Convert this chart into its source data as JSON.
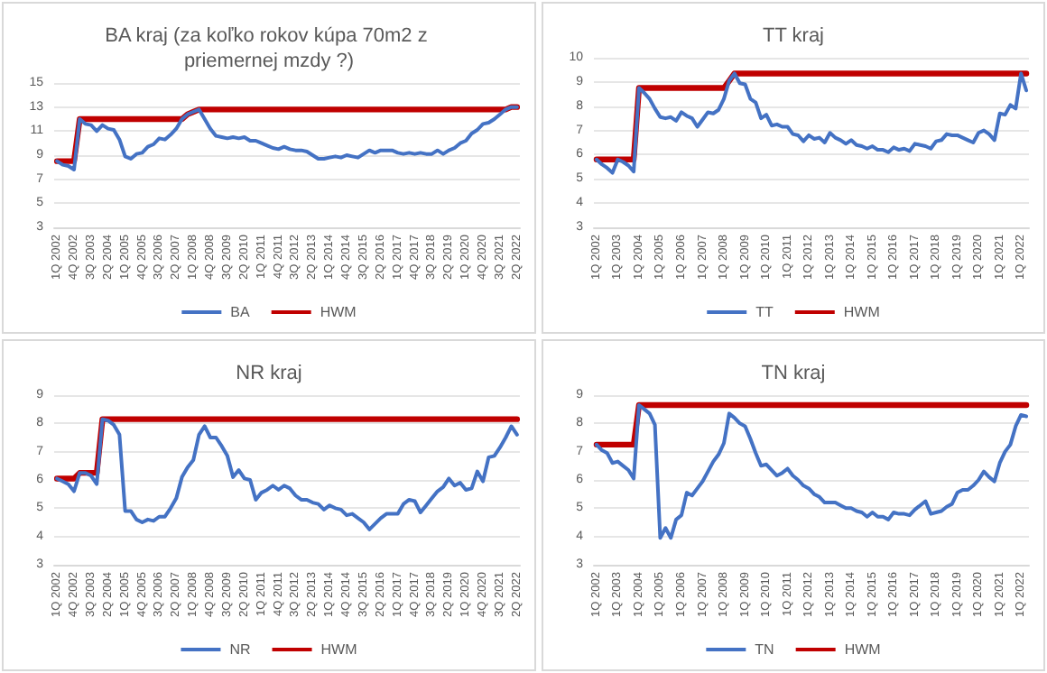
{
  "chart_data": [
    {
      "type": "line",
      "title": "BA kraj (za koľko rokov kúpa 70m2 z priemernej mzdy ?)",
      "categories": [
        "1Q 2002",
        null,
        null,
        "4Q 2002",
        null,
        null,
        "3Q 2003",
        null,
        null,
        "2Q 2004",
        null,
        null,
        "1Q 2005",
        null,
        null,
        "4Q 2005",
        null,
        null,
        "3Q 2006",
        null,
        null,
        "2Q 2007",
        null,
        null,
        "1Q 2008",
        null,
        null,
        "4Q 2008",
        null,
        null,
        "3Q 2009",
        null,
        null,
        "2Q 2010",
        null,
        null,
        "1Q 2011",
        null,
        null,
        "4Q 2011",
        null,
        null,
        "3Q 2012",
        null,
        null,
        "2Q 2013",
        null,
        null,
        "1Q 2014",
        null,
        null,
        "4Q 2014",
        null,
        null,
        "3Q 2015",
        null,
        null,
        "2Q 2016",
        null,
        null,
        "1Q 2017",
        null,
        null,
        "4Q 2017",
        null,
        null,
        "3Q 2018",
        null,
        null,
        "2Q 2019",
        null,
        null,
        "1Q 2020",
        null,
        null,
        "4Q 2020",
        null,
        null,
        "3Q 2021",
        null,
        null,
        "2Q 2022"
      ],
      "series": [
        {
          "name": "BA",
          "color": "#4472c4",
          "values": [
            8.5,
            8.2,
            8.1,
            7.8,
            12.0,
            11.6,
            11.5,
            11.0,
            11.5,
            11.2,
            11.1,
            10.3,
            8.9,
            8.7,
            9.1,
            9.2,
            9.7,
            9.9,
            10.4,
            10.3,
            10.7,
            11.2,
            12.0,
            12.4,
            12.6,
            12.8,
            12.0,
            11.2,
            10.6,
            10.5,
            10.4,
            10.5,
            10.4,
            10.5,
            10.2,
            10.2,
            10.0,
            9.8,
            9.6,
            9.5,
            9.7,
            9.5,
            9.4,
            9.4,
            9.3,
            9.0,
            8.7,
            8.7,
            8.8,
            8.9,
            8.8,
            9.0,
            8.9,
            8.8,
            9.1,
            9.4,
            9.2,
            9.4,
            9.4,
            9.4,
            9.2,
            9.1,
            9.2,
            9.1,
            9.2,
            9.1,
            9.1,
            9.4,
            9.1,
            9.4,
            9.6,
            10.0,
            10.2,
            10.8,
            11.1,
            11.6,
            11.7,
            12.0,
            12.4,
            12.8,
            13.0,
            13.0
          ]
        },
        {
          "name": "HWM",
          "color": "#c00000",
          "values": [
            8.5,
            8.5,
            8.5,
            8.5,
            12.0,
            12.0,
            12.0,
            12.0,
            12.0,
            12.0,
            12.0,
            12.0,
            12.0,
            12.0,
            12.0,
            12.0,
            12.0,
            12.0,
            12.0,
            12.0,
            12.0,
            12.0,
            12.0,
            12.4,
            12.6,
            12.8,
            12.8,
            12.8,
            12.8,
            12.8,
            12.8,
            12.8,
            12.8,
            12.8,
            12.8,
            12.8,
            12.8,
            12.8,
            12.8,
            12.8,
            12.8,
            12.8,
            12.8,
            12.8,
            12.8,
            12.8,
            12.8,
            12.8,
            12.8,
            12.8,
            12.8,
            12.8,
            12.8,
            12.8,
            12.8,
            12.8,
            12.8,
            12.8,
            12.8,
            12.8,
            12.8,
            12.8,
            12.8,
            12.8,
            12.8,
            12.8,
            12.8,
            12.8,
            12.8,
            12.8,
            12.8,
            12.8,
            12.8,
            12.8,
            12.8,
            12.8,
            12.8,
            12.8,
            12.8,
            12.8,
            13.0,
            13.0
          ]
        }
      ],
      "ylim": [
        3,
        15
      ],
      "yticks": [
        3,
        5,
        7,
        9,
        11,
        13,
        15
      ],
      "grid": "y",
      "legend": "bottom",
      "marker": "none"
    },
    {
      "type": "line",
      "title": "TT kraj",
      "categories": [
        "1Q 2002",
        null,
        null,
        null,
        "1Q 2003",
        null,
        null,
        null,
        "1Q 2004",
        null,
        null,
        null,
        "1Q 2005",
        null,
        null,
        null,
        "1Q 2006",
        null,
        null,
        null,
        "1Q 2007",
        null,
        null,
        null,
        "1Q 2008",
        null,
        null,
        null,
        "1Q 2009",
        null,
        null,
        null,
        "1Q 2010",
        null,
        null,
        null,
        "1Q 2011",
        null,
        null,
        null,
        "1Q 2012",
        null,
        null,
        null,
        "1Q 2013",
        null,
        null,
        null,
        "1Q 2014",
        null,
        null,
        null,
        "1Q 2015",
        null,
        null,
        null,
        "1Q 2016",
        null,
        null,
        null,
        "1Q 2017",
        null,
        null,
        null,
        "1Q 2018",
        null,
        null,
        null,
        "1Q 2019",
        null,
        null,
        null,
        "1Q 2020",
        null,
        null,
        null,
        "1Q 2021",
        null,
        null,
        null,
        "1Q 2022",
        null
      ],
      "series": [
        {
          "name": "TT",
          "color": "#4472c4",
          "values": [
            5.8,
            5.6,
            5.45,
            5.25,
            5.8,
            5.7,
            5.55,
            5.3,
            8.75,
            8.55,
            8.3,
            7.9,
            7.55,
            7.5,
            7.55,
            7.4,
            7.75,
            7.6,
            7.5,
            7.15,
            7.45,
            7.75,
            7.7,
            7.85,
            8.3,
            9.05,
            9.35,
            8.95,
            8.9,
            8.3,
            8.15,
            7.5,
            7.65,
            7.2,
            7.25,
            7.15,
            7.15,
            6.85,
            6.8,
            6.55,
            6.8,
            6.65,
            6.7,
            6.5,
            6.9,
            6.7,
            6.6,
            6.45,
            6.6,
            6.4,
            6.35,
            6.25,
            6.35,
            6.2,
            6.2,
            6.1,
            6.3,
            6.2,
            6.25,
            6.15,
            6.45,
            6.4,
            6.35,
            6.25,
            6.55,
            6.6,
            6.85,
            6.8,
            6.8,
            6.7,
            6.6,
            6.5,
            6.9,
            7.0,
            6.85,
            6.6,
            7.7,
            7.65,
            8.05,
            7.9,
            9.35,
            8.65
          ]
        },
        {
          "name": "HWM",
          "color": "#c00000",
          "values": [
            5.8,
            5.8,
            5.8,
            5.8,
            5.8,
            5.8,
            5.8,
            5.8,
            8.75,
            8.75,
            8.75,
            8.75,
            8.75,
            8.75,
            8.75,
            8.75,
            8.75,
            8.75,
            8.75,
            8.75,
            8.75,
            8.75,
            8.75,
            8.75,
            8.75,
            9.05,
            9.35,
            9.35,
            9.35,
            9.35,
            9.35,
            9.35,
            9.35,
            9.35,
            9.35,
            9.35,
            9.35,
            9.35,
            9.35,
            9.35,
            9.35,
            9.35,
            9.35,
            9.35,
            9.35,
            9.35,
            9.35,
            9.35,
            9.35,
            9.35,
            9.35,
            9.35,
            9.35,
            9.35,
            9.35,
            9.35,
            9.35,
            9.35,
            9.35,
            9.35,
            9.35,
            9.35,
            9.35,
            9.35,
            9.35,
            9.35,
            9.35,
            9.35,
            9.35,
            9.35,
            9.35,
            9.35,
            9.35,
            9.35,
            9.35,
            9.35,
            9.35,
            9.35,
            9.35,
            9.35,
            9.35,
            9.35
          ]
        }
      ],
      "ylim": [
        3,
        10
      ],
      "yticks": [
        3,
        4,
        5,
        6,
        7,
        8,
        9,
        10
      ],
      "grid": "y",
      "legend": "bottom",
      "marker": "none"
    },
    {
      "type": "line",
      "title": "NR kraj",
      "categories": [
        "1Q 2002",
        null,
        null,
        "4Q 2002",
        null,
        null,
        "3Q 2003",
        null,
        null,
        "2Q 2004",
        null,
        null,
        "1Q 2005",
        null,
        null,
        "4Q 2005",
        null,
        null,
        "3Q 2006",
        null,
        null,
        "2Q 2007",
        null,
        null,
        "1Q 2008",
        null,
        null,
        "4Q 2008",
        null,
        null,
        "3Q 2009",
        null,
        null,
        "2Q 2010",
        null,
        null,
        "1Q 2011",
        null,
        null,
        "4Q 2011",
        null,
        null,
        "3Q 2012",
        null,
        null,
        "2Q 2013",
        null,
        null,
        "1Q 2014",
        null,
        null,
        "4Q 2014",
        null,
        null,
        "3Q 2015",
        null,
        null,
        "2Q 2016",
        null,
        null,
        "1Q 2017",
        null,
        null,
        "4Q 2017",
        null,
        null,
        "3Q 2018",
        null,
        null,
        "2Q 2019",
        null,
        null,
        "1Q 2020",
        null,
        null,
        "4Q 2020",
        null,
        null,
        "3Q 2021",
        null,
        null,
        "2Q 2022"
      ],
      "series": [
        {
          "name": "NR",
          "color": "#4472c4",
          "values": [
            6.05,
            5.95,
            5.85,
            5.6,
            6.25,
            6.25,
            6.15,
            5.85,
            8.15,
            8.1,
            7.95,
            7.6,
            4.9,
            4.9,
            4.6,
            4.5,
            4.6,
            4.55,
            4.7,
            4.7,
            5.0,
            5.35,
            6.1,
            6.45,
            6.7,
            7.6,
            7.9,
            7.5,
            7.5,
            7.2,
            6.85,
            6.1,
            6.35,
            6.05,
            6.0,
            5.3,
            5.55,
            5.65,
            5.8,
            5.65,
            5.8,
            5.7,
            5.45,
            5.3,
            5.3,
            5.2,
            5.15,
            4.95,
            5.1,
            5.0,
            4.95,
            4.75,
            4.8,
            4.65,
            4.5,
            4.25,
            4.45,
            4.65,
            4.8,
            4.8,
            4.8,
            5.15,
            5.3,
            5.25,
            4.85,
            5.1,
            5.35,
            5.6,
            5.75,
            6.05,
            5.8,
            5.9,
            5.65,
            5.7,
            6.3,
            5.95,
            6.8,
            6.85,
            7.15,
            7.5,
            7.9,
            7.6
          ]
        },
        {
          "name": "HWM",
          "color": "#c00000",
          "values": [
            6.05,
            6.05,
            6.05,
            6.05,
            6.25,
            6.25,
            6.25,
            6.25,
            8.15,
            8.15,
            8.15,
            8.15,
            8.15,
            8.15,
            8.15,
            8.15,
            8.15,
            8.15,
            8.15,
            8.15,
            8.15,
            8.15,
            8.15,
            8.15,
            8.15,
            8.15,
            8.15,
            8.15,
            8.15,
            8.15,
            8.15,
            8.15,
            8.15,
            8.15,
            8.15,
            8.15,
            8.15,
            8.15,
            8.15,
            8.15,
            8.15,
            8.15,
            8.15,
            8.15,
            8.15,
            8.15,
            8.15,
            8.15,
            8.15,
            8.15,
            8.15,
            8.15,
            8.15,
            8.15,
            8.15,
            8.15,
            8.15,
            8.15,
            8.15,
            8.15,
            8.15,
            8.15,
            8.15,
            8.15,
            8.15,
            8.15,
            8.15,
            8.15,
            8.15,
            8.15,
            8.15,
            8.15,
            8.15,
            8.15,
            8.15,
            8.15,
            8.15,
            8.15,
            8.15,
            8.15,
            8.15,
            8.15
          ]
        }
      ],
      "ylim": [
        3,
        9
      ],
      "yticks": [
        3,
        4,
        5,
        6,
        7,
        8,
        9
      ],
      "grid": "y",
      "legend": "bottom",
      "marker": "none"
    },
    {
      "type": "line",
      "title": "TN kraj",
      "categories": [
        "1Q 2002",
        null,
        null,
        null,
        "1Q 2003",
        null,
        null,
        null,
        "1Q 2004",
        null,
        null,
        null,
        "1Q 2005",
        null,
        null,
        null,
        "1Q 2006",
        null,
        null,
        null,
        "1Q 2007",
        null,
        null,
        null,
        "1Q 2008",
        null,
        null,
        null,
        "1Q 2009",
        null,
        null,
        null,
        "1Q 2010",
        null,
        null,
        null,
        "1Q 2011",
        null,
        null,
        null,
        "1Q 2012",
        null,
        null,
        null,
        "1Q 2013",
        null,
        null,
        null,
        "1Q 2014",
        null,
        null,
        null,
        "1Q 2015",
        null,
        null,
        null,
        "1Q 2016",
        null,
        null,
        null,
        "1Q 2017",
        null,
        null,
        null,
        "1Q 2018",
        null,
        null,
        null,
        "1Q 2019",
        null,
        null,
        null,
        "1Q 2020",
        null,
        null,
        null,
        "1Q 2021",
        null,
        null,
        null,
        "1Q 2022",
        null
      ],
      "series": [
        {
          "name": "TN",
          "color": "#4472c4",
          "values": [
            7.25,
            7.05,
            6.95,
            6.6,
            6.65,
            6.5,
            6.35,
            6.05,
            8.65,
            8.5,
            8.35,
            7.95,
            3.95,
            4.3,
            3.95,
            4.6,
            4.75,
            5.55,
            5.45,
            5.7,
            5.95,
            6.3,
            6.65,
            6.9,
            7.3,
            8.35,
            8.2,
            8.0,
            7.9,
            7.45,
            6.95,
            6.5,
            6.55,
            6.35,
            6.15,
            6.25,
            6.4,
            6.15,
            6.0,
            5.8,
            5.7,
            5.5,
            5.4,
            5.2,
            5.2,
            5.2,
            5.1,
            5.0,
            5.0,
            4.9,
            4.85,
            4.7,
            4.85,
            4.7,
            4.7,
            4.6,
            4.85,
            4.8,
            4.8,
            4.75,
            4.95,
            5.1,
            5.25,
            4.8,
            4.85,
            4.9,
            5.05,
            5.15,
            5.55,
            5.65,
            5.65,
            5.8,
            6.0,
            6.3,
            6.1,
            5.95,
            6.6,
            7.0,
            7.25,
            7.9,
            8.3,
            8.25
          ]
        },
        {
          "name": "HWM",
          "color": "#c00000",
          "values": [
            7.25,
            7.25,
            7.25,
            7.25,
            7.25,
            7.25,
            7.25,
            7.25,
            8.65,
            8.65,
            8.65,
            8.65,
            8.65,
            8.65,
            8.65,
            8.65,
            8.65,
            8.65,
            8.65,
            8.65,
            8.65,
            8.65,
            8.65,
            8.65,
            8.65,
            8.65,
            8.65,
            8.65,
            8.65,
            8.65,
            8.65,
            8.65,
            8.65,
            8.65,
            8.65,
            8.65,
            8.65,
            8.65,
            8.65,
            8.65,
            8.65,
            8.65,
            8.65,
            8.65,
            8.65,
            8.65,
            8.65,
            8.65,
            8.65,
            8.65,
            8.65,
            8.65,
            8.65,
            8.65,
            8.65,
            8.65,
            8.65,
            8.65,
            8.65,
            8.65,
            8.65,
            8.65,
            8.65,
            8.65,
            8.65,
            8.65,
            8.65,
            8.65,
            8.65,
            8.65,
            8.65,
            8.65,
            8.65,
            8.65,
            8.65,
            8.65,
            8.65,
            8.65,
            8.65,
            8.65,
            8.65,
            8.65
          ]
        }
      ],
      "ylim": [
        3,
        9
      ],
      "yticks": [
        3,
        4,
        5,
        6,
        7,
        8,
        9
      ],
      "grid": "y",
      "legend": "bottom",
      "marker": "none"
    }
  ]
}
